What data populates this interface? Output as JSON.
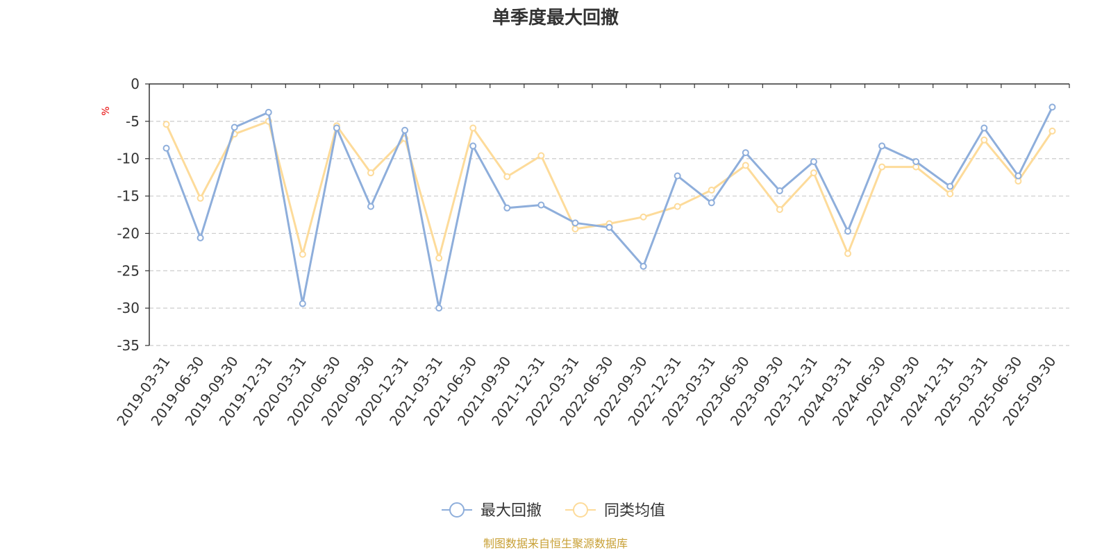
{
  "chart_data": {
    "type": "line",
    "title": "单季度最大回撤",
    "ylabel": "%",
    "ylim": [
      -35,
      0
    ],
    "yticks": [
      0,
      -5,
      -10,
      -15,
      -20,
      -25,
      -30,
      -35
    ],
    "ytick_labels": [
      "0",
      "-5",
      "-10",
      "-15",
      "-20",
      "-25",
      "-30",
      "-35"
    ],
    "grid": true,
    "legend_position": "bottom-center",
    "categories": [
      "2019-03-31",
      "2019-06-30",
      "2019-09-30",
      "2019-12-31",
      "2020-03-31",
      "2020-06-30",
      "2020-09-30",
      "2020-12-31",
      "2021-03-31",
      "2021-06-30",
      "2021-09-30",
      "2021-12-31",
      "2022-03-31",
      "2022-06-30",
      "2022-09-30",
      "2022-12-31",
      "2023-03-31",
      "2023-06-30",
      "2023-09-30",
      "2023-12-31",
      "2024-03-31",
      "2024-06-30",
      "2024-09-30",
      "2024-12-31",
      "2025-03-31",
      "2025-06-30",
      "2025-09-30"
    ],
    "series": [
      {
        "name": "最大回撤",
        "color": "#8eaedb",
        "values": [
          -8.6,
          -20.6,
          -5.8,
          -3.8,
          -29.4,
          -5.9,
          -16.4,
          -6.2,
          -30.0,
          -8.3,
          -16.6,
          -16.2,
          -18.6,
          -19.2,
          -24.4,
          -12.3,
          -15.9,
          -9.2,
          -14.3,
          -10.4,
          -19.7,
          -8.3,
          -10.4,
          -13.7,
          -5.9,
          -12.3,
          -3.1
        ]
      },
      {
        "name": "同类均值",
        "color": "#fddb9a",
        "values": [
          -5.4,
          -15.3,
          -6.7,
          -5.0,
          -22.8,
          -5.6,
          -11.9,
          -7.3,
          -23.3,
          -5.9,
          -12.4,
          -9.6,
          -19.4,
          -18.7,
          -17.8,
          -16.4,
          -14.2,
          -10.9,
          -16.8,
          -11.9,
          -22.7,
          -11.1,
          -11.1,
          -14.7,
          -7.5,
          -13.0,
          -6.3
        ]
      }
    ]
  },
  "source": "制图数据来自恒生聚源数据库"
}
